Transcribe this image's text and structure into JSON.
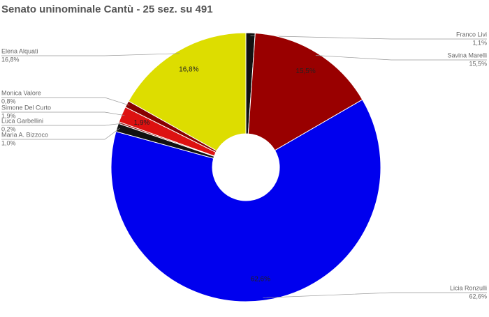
{
  "chart_data": {
    "type": "donut",
    "title": "Senato uninominale Cantù - 25 sez. su 491",
    "categories": [
      "Franco Livi",
      "Savina Marelli",
      "Licia Ronzulli",
      "Maria A. Bizzoco",
      "Luca Garbellini",
      "Simone Del Curto",
      "Monica Valore",
      "Elena Alquati"
    ],
    "values": [
      1.1,
      15.5,
      62.6,
      1.0,
      0.2,
      1.9,
      0.8,
      16.8
    ],
    "value_labels": [
      "1,1%",
      "15,5%",
      "62,6%",
      "1,0%",
      "0,2%",
      "1,9%",
      "0,8%",
      "16,8%"
    ],
    "colors": [
      "#111111",
      "#990000",
      "#0000ee",
      "#111111",
      "#880000",
      "#dd1111",
      "#880000",
      "#dddd00"
    ]
  }
}
